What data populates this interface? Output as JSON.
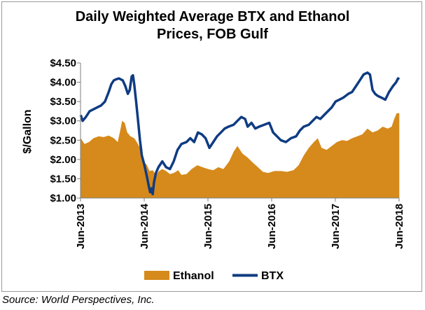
{
  "chart_data": {
    "type": "area+line",
    "title_lines": [
      "Daily Weighted Average BTX and Ethanol",
      "Prices, FOB Gulf"
    ],
    "ylabel": "$/Gallon",
    "ylim": [
      1.0,
      4.5
    ],
    "y_ticks": [
      "$1.00",
      "$1.50",
      "$2.00",
      "$2.50",
      "$3.00",
      "$3.50",
      "$4.00",
      "$4.50"
    ],
    "y_tick_values": [
      1.0,
      1.5,
      2.0,
      2.5,
      3.0,
      3.5,
      4.0,
      4.5
    ],
    "x_ticks": [
      "Jun-2013",
      "Jun-2014",
      "Jun-2015",
      "Jun-2016",
      "Jun-2017",
      "Jun-2018"
    ],
    "x_range": [
      2013.417,
      2018.417
    ],
    "legend_position": "bottom",
    "series": [
      {
        "name": "Ethanol",
        "kind": "area",
        "color": "#D68A1B",
        "points": [
          [
            2013.42,
            2.55
          ],
          [
            2013.48,
            2.4
          ],
          [
            2013.55,
            2.45
          ],
          [
            2013.62,
            2.55
          ],
          [
            2013.7,
            2.6
          ],
          [
            2013.78,
            2.58
          ],
          [
            2013.86,
            2.62
          ],
          [
            2013.94,
            2.55
          ],
          [
            2014.0,
            2.45
          ],
          [
            2014.04,
            2.75
          ],
          [
            2014.07,
            3.0
          ],
          [
            2014.11,
            2.95
          ],
          [
            2014.15,
            2.7
          ],
          [
            2014.2,
            2.6
          ],
          [
            2014.26,
            2.55
          ],
          [
            2014.3,
            2.45
          ],
          [
            2014.35,
            2.3
          ],
          [
            2014.38,
            2.05
          ],
          [
            2014.41,
            1.95
          ],
          [
            2014.46,
            1.85
          ],
          [
            2014.5,
            1.7
          ],
          [
            2014.55,
            1.72
          ],
          [
            2014.6,
            1.6
          ],
          [
            2014.65,
            1.7
          ],
          [
            2014.7,
            1.75
          ],
          [
            2014.76,
            1.7
          ],
          [
            2014.82,
            1.62
          ],
          [
            2014.88,
            1.65
          ],
          [
            2014.95,
            1.72
          ],
          [
            2015.0,
            1.6
          ],
          [
            2015.08,
            1.62
          ],
          [
            2015.16,
            1.75
          ],
          [
            2015.25,
            1.85
          ],
          [
            2015.33,
            1.8
          ],
          [
            2015.42,
            1.75
          ],
          [
            2015.5,
            1.72
          ],
          [
            2015.58,
            1.8
          ],
          [
            2015.66,
            1.75
          ],
          [
            2015.75,
            1.95
          ],
          [
            2015.82,
            2.2
          ],
          [
            2015.88,
            2.35
          ],
          [
            2015.96,
            2.15
          ],
          [
            2016.04,
            2.05
          ],
          [
            2016.1,
            1.95
          ],
          [
            2016.2,
            1.8
          ],
          [
            2016.28,
            1.68
          ],
          [
            2016.36,
            1.65
          ],
          [
            2016.46,
            1.7
          ],
          [
            2016.56,
            1.7
          ],
          [
            2016.66,
            1.68
          ],
          [
            2016.76,
            1.72
          ],
          [
            2016.84,
            1.85
          ],
          [
            2016.92,
            2.1
          ],
          [
            2017.0,
            2.3
          ],
          [
            2017.08,
            2.45
          ],
          [
            2017.14,
            2.55
          ],
          [
            2017.2,
            2.3
          ],
          [
            2017.28,
            2.25
          ],
          [
            2017.36,
            2.35
          ],
          [
            2017.44,
            2.45
          ],
          [
            2017.52,
            2.5
          ],
          [
            2017.6,
            2.48
          ],
          [
            2017.68,
            2.55
          ],
          [
            2017.76,
            2.6
          ],
          [
            2017.84,
            2.65
          ],
          [
            2017.92,
            2.8
          ],
          [
            2018.0,
            2.7
          ],
          [
            2018.08,
            2.75
          ],
          [
            2018.16,
            2.85
          ],
          [
            2018.24,
            2.8
          ],
          [
            2018.3,
            2.85
          ],
          [
            2018.34,
            3.05
          ],
          [
            2018.38,
            3.2
          ],
          [
            2018.42,
            3.2
          ]
        ]
      },
      {
        "name": "BTX",
        "kind": "line",
        "color": "#0F3C82",
        "points": [
          [
            2013.42,
            3.15
          ],
          [
            2013.45,
            3.0
          ],
          [
            2013.5,
            3.1
          ],
          [
            2013.56,
            3.25
          ],
          [
            2013.62,
            3.3
          ],
          [
            2013.68,
            3.35
          ],
          [
            2013.74,
            3.4
          ],
          [
            2013.8,
            3.5
          ],
          [
            2013.86,
            3.75
          ],
          [
            2013.9,
            3.95
          ],
          [
            2013.94,
            4.05
          ],
          [
            2013.98,
            4.08
          ],
          [
            2014.02,
            4.1
          ],
          [
            2014.08,
            4.05
          ],
          [
            2014.12,
            3.9
          ],
          [
            2014.16,
            3.7
          ],
          [
            2014.19,
            3.8
          ],
          [
            2014.22,
            4.15
          ],
          [
            2014.24,
            4.18
          ],
          [
            2014.26,
            3.95
          ],
          [
            2014.29,
            3.5
          ],
          [
            2014.32,
            3.0
          ],
          [
            2014.35,
            2.5
          ],
          [
            2014.38,
            2.1
          ],
          [
            2014.42,
            1.85
          ],
          [
            2014.46,
            1.55
          ],
          [
            2014.49,
            1.3
          ],
          [
            2014.51,
            1.15
          ],
          [
            2014.53,
            1.25
          ],
          [
            2014.55,
            1.1
          ],
          [
            2014.57,
            1.4
          ],
          [
            2014.6,
            1.65
          ],
          [
            2014.64,
            1.8
          ],
          [
            2014.7,
            1.95
          ],
          [
            2014.76,
            1.8
          ],
          [
            2014.82,
            1.75
          ],
          [
            2014.88,
            1.95
          ],
          [
            2014.94,
            2.25
          ],
          [
            2015.0,
            2.4
          ],
          [
            2015.08,
            2.45
          ],
          [
            2015.14,
            2.55
          ],
          [
            2015.2,
            2.45
          ],
          [
            2015.26,
            2.7
          ],
          [
            2015.32,
            2.65
          ],
          [
            2015.38,
            2.55
          ],
          [
            2015.44,
            2.3
          ],
          [
            2015.5,
            2.45
          ],
          [
            2015.56,
            2.6
          ],
          [
            2015.62,
            2.7
          ],
          [
            2015.68,
            2.8
          ],
          [
            2015.74,
            2.85
          ],
          [
            2015.82,
            2.9
          ],
          [
            2015.88,
            3.0
          ],
          [
            2015.94,
            3.1
          ],
          [
            2016.0,
            3.05
          ],
          [
            2016.04,
            2.85
          ],
          [
            2016.1,
            2.95
          ],
          [
            2016.16,
            2.8
          ],
          [
            2016.22,
            2.85
          ],
          [
            2016.3,
            2.9
          ],
          [
            2016.38,
            2.95
          ],
          [
            2016.44,
            2.7
          ],
          [
            2016.5,
            2.6
          ],
          [
            2016.56,
            2.5
          ],
          [
            2016.64,
            2.45
          ],
          [
            2016.72,
            2.55
          ],
          [
            2016.8,
            2.6
          ],
          [
            2016.86,
            2.75
          ],
          [
            2016.92,
            2.85
          ],
          [
            2017.0,
            2.9
          ],
          [
            2017.06,
            3.0
          ],
          [
            2017.12,
            3.1
          ],
          [
            2017.18,
            3.05
          ],
          [
            2017.24,
            3.15
          ],
          [
            2017.3,
            3.25
          ],
          [
            2017.36,
            3.35
          ],
          [
            2017.42,
            3.5
          ],
          [
            2017.48,
            3.55
          ],
          [
            2017.54,
            3.6
          ],
          [
            2017.62,
            3.7
          ],
          [
            2017.68,
            3.75
          ],
          [
            2017.74,
            3.9
          ],
          [
            2017.8,
            4.05
          ],
          [
            2017.86,
            4.2
          ],
          [
            2017.92,
            4.25
          ],
          [
            2017.96,
            4.2
          ],
          [
            2018.0,
            3.8
          ],
          [
            2018.04,
            3.7
          ],
          [
            2018.08,
            3.65
          ],
          [
            2018.14,
            3.6
          ],
          [
            2018.2,
            3.55
          ],
          [
            2018.26,
            3.75
          ],
          [
            2018.32,
            3.9
          ],
          [
            2018.37,
            4.0
          ],
          [
            2018.4,
            4.1
          ],
          [
            2018.42,
            4.08
          ]
        ]
      }
    ]
  },
  "source_text": "Source: World Perspectives, Inc."
}
